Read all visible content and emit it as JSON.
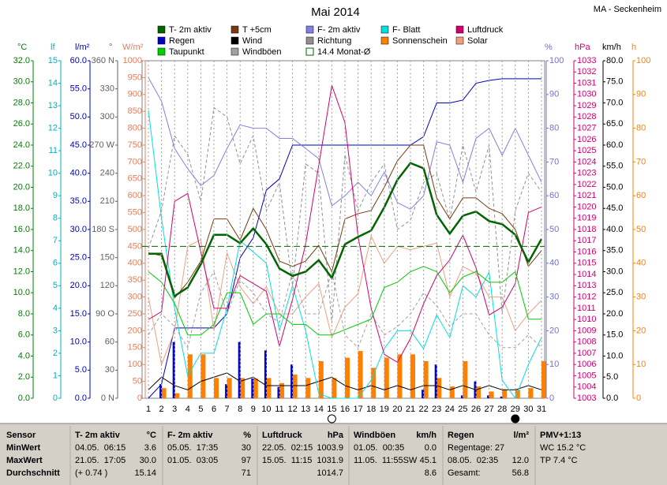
{
  "chart_data": {
    "type": "weather",
    "title": "Mai 2014",
    "station": "MA - Seckenheim",
    "x": [
      1,
      2,
      3,
      4,
      5,
      6,
      7,
      8,
      9,
      10,
      11,
      12,
      13,
      14,
      15,
      16,
      17,
      18,
      19,
      20,
      21,
      22,
      23,
      24,
      25,
      26,
      27,
      28,
      29,
      30,
      31
    ],
    "grid": true,
    "axes": [
      {
        "unit": "°C",
        "color": "#008000",
        "side": "left",
        "lim": [
          0,
          32
        ],
        "ticks": [
          {
            "value": 0,
            "label": "0.0"
          },
          {
            "value": 2,
            "label": "2.0"
          },
          {
            "value": 4,
            "label": "4.0"
          },
          {
            "value": 6,
            "label": "6.0"
          },
          {
            "value": 8,
            "label": "8.0"
          },
          {
            "value": 10,
            "label": "10.0"
          },
          {
            "value": 12,
            "label": "12.0"
          },
          {
            "value": 14,
            "label": "14.0"
          },
          {
            "value": 16,
            "label": "16.0"
          },
          {
            "value": 18,
            "label": "18.0"
          },
          {
            "value": 20,
            "label": "20.0"
          },
          {
            "value": 22,
            "label": "22.0"
          },
          {
            "value": 24,
            "label": "24.0"
          },
          {
            "value": 26,
            "label": "26.0"
          },
          {
            "value": 28,
            "label": "28.0"
          },
          {
            "value": 30,
            "label": "30.0"
          },
          {
            "value": 32,
            "label": "32.0"
          }
        ]
      },
      {
        "unit": "lf",
        "color": "#00b0c0",
        "side": "left",
        "lim": [
          0,
          15
        ],
        "ticks": [
          0,
          1,
          2,
          3,
          4,
          5,
          6,
          7,
          8,
          9,
          10,
          11,
          12,
          13,
          14,
          15
        ]
      },
      {
        "unit": "l/m²",
        "color": "#0000c0",
        "side": "left",
        "lim": [
          0,
          60
        ],
        "ticks": [
          {
            "value": 0,
            "label": "0.0"
          },
          {
            "value": 5,
            "label": "5.0"
          },
          {
            "value": 10,
            "label": "10.0"
          },
          {
            "value": 15,
            "label": "15.0"
          },
          {
            "value": 20,
            "label": "20.0"
          },
          {
            "value": 25,
            "label": "25.0"
          },
          {
            "value": 30,
            "label": "30.0"
          },
          {
            "value": 35,
            "label": "35.0"
          },
          {
            "value": 40,
            "label": "40.0"
          },
          {
            "value": 45,
            "label": "45.0"
          },
          {
            "value": 50,
            "label": "50.0"
          },
          {
            "value": 55,
            "label": "55.0"
          },
          {
            "value": 60,
            "label": "60.0"
          }
        ]
      },
      {
        "unit": "°",
        "color": "#606060",
        "side": "left",
        "lim": [
          0,
          360
        ],
        "ticks": [
          {
            "value": 0,
            "label": "0 N"
          },
          30,
          60,
          {
            "value": 90,
            "label": "90 O"
          },
          120,
          150,
          {
            "value": 180,
            "label": "180 S"
          },
          210,
          240,
          {
            "value": 270,
            "label": "270 W"
          },
          300,
          330,
          {
            "value": 360,
            "label": "360 N"
          }
        ]
      },
      {
        "unit": "W/m²",
        "color": "#e08060",
        "side": "left",
        "lim": [
          0,
          1000
        ],
        "ticks": [
          0,
          50,
          100,
          150,
          200,
          250,
          300,
          350,
          400,
          450,
          500,
          550,
          600,
          650,
          700,
          750,
          800,
          850,
          900,
          950,
          1000
        ]
      },
      {
        "unit": "%",
        "color": "#7070d0",
        "side": "right",
        "lim": [
          0,
          100
        ],
        "ticks": [
          0,
          10,
          20,
          30,
          40,
          50,
          60,
          70,
          80,
          90,
          100
        ]
      },
      {
        "unit": "hPa",
        "color": "#d0006f",
        "side": "right",
        "lim": [
          1003,
          1033
        ],
        "ticks": [
          1003,
          1004,
          1005,
          1006,
          1007,
          1008,
          1009,
          1010,
          1011,
          1012,
          1013,
          1014,
          1015,
          1016,
          1017,
          1018,
          1019,
          1020,
          1021,
          1022,
          1023,
          1024,
          1025,
          1026,
          1027,
          1028,
          1029,
          1030,
          1031,
          1032,
          1033
        ]
      },
      {
        "unit": "km/h",
        "color": "#000000",
        "side": "right",
        "lim": [
          0,
          80
        ],
        "ticks": [
          {
            "value": 0,
            "label": "0.0"
          },
          {
            "value": 5,
            "label": "5.0"
          },
          {
            "value": 10,
            "label": "10.0"
          },
          {
            "value": 15,
            "label": "15.0"
          },
          {
            "value": 20,
            "label": "20.0"
          },
          {
            "value": 25,
            "label": "25.0"
          },
          {
            "value": 30,
            "label": "30.0"
          },
          {
            "value": 35,
            "label": "35.0"
          },
          {
            "value": 40,
            "label": "40.0"
          },
          {
            "value": 45,
            "label": "45.0"
          },
          {
            "value": 50,
            "label": "50.0"
          },
          {
            "value": 55,
            "label": "55.0"
          },
          {
            "value": 60,
            "label": "60.0"
          },
          {
            "value": 65,
            "label": "65.0"
          },
          {
            "value": 70,
            "label": "70.0"
          },
          {
            "value": 75,
            "label": "75.0"
          },
          {
            "value": 80,
            "label": "80.0"
          }
        ]
      },
      {
        "unit": "h",
        "color": "#ff8000",
        "side": "right",
        "lim": [
          0,
          100
        ],
        "ticks": [
          0,
          10,
          20,
          30,
          40,
          50,
          60,
          70,
          80,
          90,
          100
        ]
      }
    ],
    "series": [
      {
        "name": "T- 2m aktiv",
        "color": "#006400",
        "style": "line",
        "width": 2.5,
        "axis": 0,
        "values": [
          13.7,
          13.7,
          9.7,
          10.5,
          12.7,
          15.5,
          15.5,
          14.7,
          16.1,
          14.6,
          12.3,
          11.6,
          12.0,
          13.1,
          11.4,
          14.6,
          15.3,
          15.9,
          18.1,
          20.7,
          22.3,
          21.8,
          17.4,
          15.6,
          17.3,
          17.7,
          16.8,
          16.5,
          15.5,
          12.9,
          15.1
        ]
      },
      {
        "name": "Regen",
        "color": "#0000c0",
        "style": "bar",
        "cumulative": true,
        "axis": 2,
        "values": [
          0,
          2.5,
          10,
          0,
          0,
          0,
          2.5,
          10,
          3.5,
          8.5,
          2,
          6,
          0,
          0,
          0,
          0,
          0,
          0,
          0,
          0,
          0,
          1.5,
          6,
          0,
          0.5,
          3,
          0.5,
          0.3,
          0,
          0,
          0
        ]
      },
      {
        "name": "Taupunkt",
        "color": "#00cc00",
        "style": "line",
        "width": 1,
        "axis": 0,
        "values": [
          12.0,
          11.0,
          9.0,
          6.0,
          6.0,
          7.0,
          10.0,
          10.0,
          7.0,
          8.0,
          8.0,
          7.0,
          7.0,
          6.0,
          6.0,
          6.5,
          7.0,
          7.5,
          10.5,
          11.0,
          12.0,
          12.5,
          12.0,
          10.0,
          11.5,
          12.0,
          11.0,
          11.0,
          12.0,
          7.5,
          7.5
        ]
      },
      {
        "name": "T +5cm",
        "color": "#7a3a10",
        "style": "line",
        "width": 1,
        "axis": 0,
        "values": [
          13.8,
          13.5,
          9.5,
          11.0,
          13.0,
          17.0,
          17.0,
          15.0,
          18.0,
          16.0,
          13.0,
          12.5,
          13.0,
          14.5,
          12.0,
          17.0,
          17.5,
          17.8,
          20.0,
          22.5,
          24.0,
          24.0,
          19.0,
          17.0,
          19.0,
          19.0,
          18.0,
          17.5,
          16.0,
          12.5,
          14.0
        ]
      },
      {
        "name": "Wind",
        "color": "#000000",
        "style": "line",
        "width": 1,
        "axis": 7,
        "values": [
          2,
          5,
          3,
          2,
          4,
          5,
          6,
          4,
          5,
          3,
          3,
          3,
          3,
          4,
          5,
          3,
          2,
          3,
          2,
          3,
          2,
          3,
          3,
          2,
          3,
          2,
          3,
          2,
          2,
          3,
          2
        ]
      },
      {
        "name": "Windböen",
        "color": "#a0a0a0",
        "style": "dashed",
        "width": 1,
        "axis": 7,
        "values": [
          15,
          20,
          17,
          12,
          25,
          30,
          20,
          28,
          25,
          20,
          18,
          30,
          20,
          20,
          30,
          15,
          12,
          20,
          15,
          17,
          20,
          25,
          22,
          17,
          20,
          20,
          15,
          12,
          12,
          15,
          12
        ]
      },
      {
        "name": "F- 2m aktiv",
        "color": "#8080e0",
        "style": "line",
        "width": 1,
        "axis": 5,
        "values": [
          95,
          88,
          74,
          68,
          63,
          66,
          74,
          81,
          80,
          80,
          77,
          77,
          74,
          71,
          57,
          60,
          64,
          60,
          67,
          58,
          56,
          60,
          76,
          75,
          64,
          77,
          80,
          72,
          80,
          72,
          64
        ]
      },
      {
        "name": "Richtung",
        "color": "#909090",
        "style": "dashed",
        "width": 1,
        "axis": 3,
        "values": [
          160,
          200,
          280,
          260,
          210,
          310,
          300,
          250,
          280,
          200,
          230,
          120,
          250,
          240,
          80,
          260,
          200,
          230,
          250,
          180,
          190,
          230,
          240,
          190,
          270,
          220,
          270,
          90,
          200,
          240,
          220
        ]
      },
      {
        "name": "F- Blatt",
        "color": "#00e0e0",
        "style": "line",
        "width": 1,
        "axis": 1,
        "values": [
          12.8,
          8,
          4,
          1,
          2,
          2,
          4,
          7,
          6.5,
          6,
          3,
          5,
          3,
          0.2,
          0,
          0,
          0,
          0.8,
          2.2,
          3,
          3,
          2.2,
          3.7,
          2.7,
          5,
          4.5,
          5.6,
          0.8,
          0,
          1.5,
          2.7
        ]
      },
      {
        "name": "Sonnenschein",
        "color": "#ff8000",
        "style": "bar",
        "axis": 8,
        "values": [
          0,
          3,
          1.5,
          13,
          13,
          6,
          6,
          6,
          5.8,
          6,
          4.5,
          7,
          6,
          11,
          6,
          12,
          14,
          9,
          12,
          13,
          13,
          11,
          6,
          3.5,
          11,
          3.5,
          2,
          2.5,
          2.5,
          3,
          11
        ]
      },
      {
        "name": "Luftdruck",
        "color": "#d0006f",
        "style": "line",
        "width": 1,
        "axis": 6,
        "values": [
          1010.0,
          1010.7,
          1020.5,
          1021.2,
          1016.0,
          1011.0,
          1011.0,
          1013.9,
          1013.2,
          1012.5,
          1007.6,
          1011.8,
          1016.7,
          1023.7,
          1030.8,
          1027.5,
          1017.4,
          1011.0,
          1006.9,
          1006.2,
          1008.3,
          1011.4,
          1013.9,
          1015.3,
          1017.5,
          1014.6,
          1010.4,
          1011.1,
          1013.2,
          1019.5,
          1020.0
        ]
      },
      {
        "name": "Solar",
        "color": "#f0a080",
        "style": "line",
        "width": 1,
        "axis": 4,
        "values": [
          300,
          100,
          200,
          450,
          470,
          200,
          430,
          330,
          280,
          330,
          250,
          250,
          300,
          340,
          180,
          270,
          310,
          480,
          400,
          450,
          440,
          450,
          460,
          300,
          390,
          370,
          300,
          300,
          200,
          250,
          290
        ]
      }
    ],
    "monthly_mean": {
      "name": "14.4 Monat-Ø",
      "value": 14.4,
      "axis": 0,
      "color": "#006400"
    }
  },
  "table": {
    "header": [
      [
        "Sensor"
      ],
      [
        "T- 2m aktiv",
        "°C"
      ],
      [
        "F- 2m aktiv",
        "%"
      ],
      [
        "Luftdruck",
        "hPa"
      ],
      [
        "Windböen",
        "km/h"
      ],
      [
        "Regen",
        "l/m²"
      ],
      [
        "PMV+1:13"
      ]
    ],
    "rows": [
      {
        "label": "MinWert",
        "cells": [
          [
            "04.05.  06:15",
            "3.6"
          ],
          [
            "05.05.  17:35",
            "30"
          ],
          [
            "22.05.  02:15",
            "1003.9"
          ],
          [
            "01.05.  00:35",
            "0.0"
          ],
          [
            "Regentage: 27",
            null
          ],
          [
            "WC 15.2 °C",
            null
          ]
        ]
      },
      {
        "label": "MaxWert",
        "cells": [
          [
            "21.05.  17:05",
            "30.0"
          ],
          [
            "01.05.  03:05",
            "97"
          ],
          [
            "15.05.  11:15",
            "1031.9"
          ],
          [
            "11.05.  11:55SW",
            "45.1"
          ],
          [
            "08.05.  02:35",
            "12.0"
          ],
          [
            "TP 7.4 °C",
            null
          ]
        ]
      },
      {
        "label": "Durchschnitt",
        "cells": [
          [
            "(+ 0.74 )",
            "15.14"
          ],
          [
            null,
            "71"
          ],
          [
            null,
            "1014.7"
          ],
          [
            null,
            "8.6"
          ],
          [
            "Gesamt:",
            "56.8"
          ]
        ]
      }
    ]
  }
}
